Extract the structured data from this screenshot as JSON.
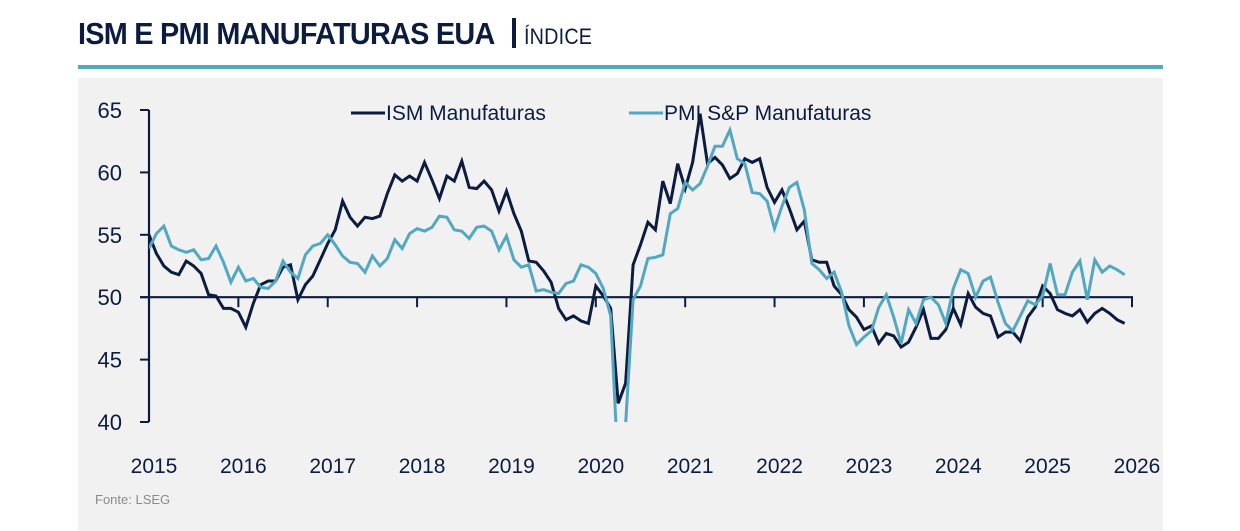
{
  "header": {
    "title": "ISM E PMI MANUFATURAS EUA",
    "subtitle": "ÍNDICE"
  },
  "footer": {
    "source": "Fonte: LSEG"
  },
  "colors": {
    "title": "#0b1c3f",
    "accent_rule": "#52a7c2",
    "panel_bg": "#f1f1f2",
    "ism": "#0b1c3f",
    "pmi": "#52a7c2",
    "axis": "#0b1c3f",
    "source_text": "#8a8a8a"
  },
  "chart_data": {
    "type": "line",
    "title": "ISM E PMI MANUFATURAS EUA | ÍNDICE",
    "xlabel": "",
    "ylabel": "",
    "ylim": [
      40,
      65
    ],
    "yticks": [
      40,
      45,
      50,
      55,
      60,
      65
    ],
    "ytick_labels": [
      "40",
      "45",
      "50",
      "55",
      "60",
      "65"
    ],
    "xlim": [
      2015.0,
      2026.0
    ],
    "xticks": [
      2015,
      2016,
      2017,
      2018,
      2019,
      2020,
      2021,
      2022,
      2023,
      2024,
      2025,
      2026
    ],
    "xtick_labels": [
      "2015",
      "2016",
      "2017",
      "2018",
      "2019",
      "2020",
      "2021",
      "2022",
      "2023",
      "2024",
      "2025",
      "2026"
    ],
    "reference_line": 50,
    "grid": false,
    "legend": {
      "position": "top-center",
      "entries": [
        "ISM Manufaturas",
        "PMI S&P Manufaturas"
      ]
    },
    "x_start": "2015-01",
    "frequency": "monthly",
    "series": [
      {
        "name": "ISM Manufaturas",
        "color": "#0b1c3f",
        "values": [
          55.0,
          53.5,
          52.5,
          52.0,
          51.8,
          52.9,
          52.5,
          51.9,
          50.2,
          50.1,
          49.1,
          49.1,
          48.8,
          47.6,
          49.5,
          51.0,
          51.3,
          51.3,
          52.4,
          52.6,
          49.8,
          51.0,
          51.7,
          53.0,
          54.3,
          55.4,
          57.7,
          56.4,
          55.7,
          56.4,
          56.3,
          56.5,
          58.3,
          59.8,
          59.3,
          59.7,
          59.3,
          60.8,
          59.4,
          57.9,
          59.7,
          59.3,
          60.9,
          58.8,
          58.7,
          59.3,
          58.6,
          56.9,
          58.5,
          56.7,
          55.3,
          52.9,
          52.8,
          52.1,
          51.2,
          49.1,
          48.2,
          48.5,
          48.1,
          47.9,
          50.9,
          50.1,
          49.1,
          41.5,
          43.1,
          52.6,
          54.2,
          56.0,
          55.4,
          59.3,
          57.5,
          60.7,
          58.7,
          60.8,
          64.7,
          60.7,
          61.2,
          60.6,
          59.5,
          59.9,
          61.1,
          60.8,
          61.1,
          58.8,
          57.6,
          58.6,
          57.1,
          55.4,
          56.1,
          53.0,
          52.8,
          52.8,
          50.9,
          50.2,
          49.0,
          48.4,
          47.4,
          47.7,
          46.3,
          47.1,
          46.9,
          46.0,
          46.4,
          47.6,
          49.0,
          46.7,
          46.7,
          47.4,
          49.1,
          47.8,
          50.3,
          49.2,
          48.7,
          48.5,
          46.8,
          47.2,
          47.2,
          46.5,
          48.4,
          49.2,
          50.9,
          50.3,
          49.0,
          48.7,
          48.5,
          49.0,
          48.0,
          48.7,
          49.1,
          48.7,
          48.2,
          47.9
        ]
      },
      {
        "name": "PMI S&P Manufaturas",
        "color": "#52a7c2",
        "values": [
          53.9,
          55.1,
          55.7,
          54.1,
          53.8,
          53.6,
          53.8,
          53.0,
          53.1,
          54.1,
          52.8,
          51.2,
          52.4,
          51.3,
          51.5,
          50.8,
          50.7,
          51.3,
          52.9,
          52.0,
          51.5,
          53.4,
          54.1,
          54.3,
          55.0,
          54.2,
          53.3,
          52.8,
          52.7,
          52.0,
          53.3,
          52.5,
          53.1,
          54.6,
          53.9,
          55.1,
          55.5,
          55.3,
          55.6,
          56.5,
          56.4,
          55.4,
          55.3,
          54.7,
          55.6,
          55.7,
          55.3,
          53.8,
          54.9,
          53.0,
          52.4,
          52.6,
          50.5,
          50.6,
          50.4,
          50.3,
          51.1,
          51.3,
          52.6,
          52.4,
          51.9,
          50.7,
          48.5,
          36.1,
          39.8,
          49.8,
          50.9,
          53.1,
          53.2,
          53.4,
          56.7,
          57.1,
          59.2,
          58.6,
          59.1,
          60.5,
          62.1,
          62.1,
          63.4,
          61.1,
          60.7,
          58.4,
          58.3,
          57.7,
          55.5,
          57.3,
          58.8,
          59.2,
          57.0,
          52.7,
          52.2,
          51.5,
          52.0,
          50.4,
          47.7,
          46.2,
          46.8,
          47.3,
          49.2,
          50.2,
          48.4,
          46.3,
          49.0,
          47.9,
          49.8,
          50.0,
          49.4,
          47.9,
          50.7,
          52.2,
          51.9,
          50.0,
          51.3,
          51.6,
          49.6,
          47.9,
          47.3,
          48.5,
          49.7,
          49.4,
          50.1,
          52.7,
          50.2,
          50.2,
          52.0,
          52.9,
          49.8,
          53.0,
          52.0,
          52.5,
          52.2,
          51.8
        ]
      }
    ]
  }
}
